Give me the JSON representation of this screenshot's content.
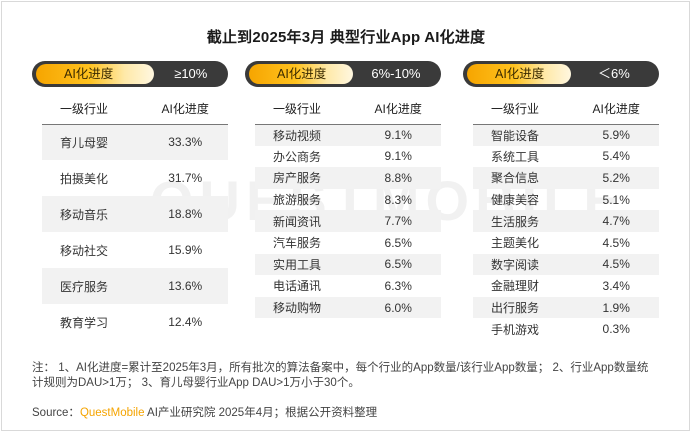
{
  "title": "截止到2025年3月 典型行业App AI化进度",
  "watermark": "QUESTMOBILE",
  "colors": {
    "accent": "#ffc21f",
    "pill_bg": "#3a3a3a",
    "brand": "#f5a400",
    "shade": "#f2f2f2"
  },
  "chart_data": {
    "type": "table",
    "title": "截止到2025年3月 典型行业App AI化进度",
    "panels": [
      {
        "label": "AI化进度",
        "range": "≥10%",
        "headers": [
          "一级行业",
          "AI化进度"
        ],
        "rows": [
          [
            "育儿母婴",
            "33.3%"
          ],
          [
            "拍摄美化",
            "31.7%"
          ],
          [
            "移动音乐",
            "18.8%"
          ],
          [
            "移动社交",
            "15.9%"
          ],
          [
            "医疗服务",
            "13.6%"
          ],
          [
            "教育学习",
            "12.4%"
          ]
        ]
      },
      {
        "label": "AI化进度",
        "range": "6%-10%",
        "headers": [
          "一级行业",
          "AI化进度"
        ],
        "rows": [
          [
            "移动视频",
            "9.1%"
          ],
          [
            "办公商务",
            "9.1%"
          ],
          [
            "房产服务",
            "8.8%"
          ],
          [
            "旅游服务",
            "8.3%"
          ],
          [
            "新闻资讯",
            "7.7%"
          ],
          [
            "汽车服务",
            "6.5%"
          ],
          [
            "实用工具",
            "6.5%"
          ],
          [
            "电话通讯",
            "6.3%"
          ],
          [
            "移动购物",
            "6.0%"
          ]
        ]
      },
      {
        "label": "AI化进度",
        "range": "＜6%",
        "headers": [
          "一级行业",
          "AI化进度"
        ],
        "rows": [
          [
            "智能设备",
            "5.9%"
          ],
          [
            "系统工具",
            "5.4%"
          ],
          [
            "聚合信息",
            "5.2%"
          ],
          [
            "健康美容",
            "5.1%"
          ],
          [
            "生活服务",
            "4.7%"
          ],
          [
            "主题美化",
            "4.5%"
          ],
          [
            "数字阅读",
            "4.5%"
          ],
          [
            "金融理财",
            "3.4%"
          ],
          [
            "出行服务",
            "1.9%"
          ],
          [
            "手机游戏",
            "0.3%"
          ]
        ]
      }
    ]
  },
  "note": {
    "line1": "注：  1、AI化进度=累计至2025年3月，所有批次的算法备案中，每个行业的App数量/该行业App数量；  2、行业App数量统",
    "line2": "计规则为DAU>1万；  3、育儿母婴行业App DAU>1万小于30个。"
  },
  "source": {
    "prefix": "Source：",
    "brand": "QuestMobile",
    "suffix": " AI产业研究院  2025年4月；根据公开资料整理"
  }
}
